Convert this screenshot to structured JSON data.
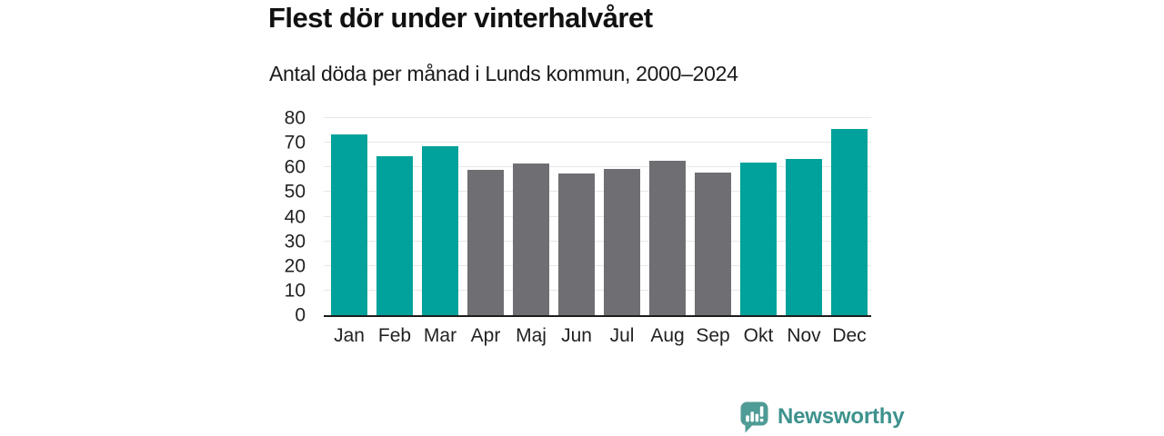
{
  "title": "Flest dör under vinterhalvåret",
  "subtitle": "Antal döda per månad i Lunds kommun, 2000–2024",
  "chart_data": {
    "type": "bar",
    "title": "Flest dör under vinterhalvåret",
    "subtitle": "Antal döda per månad i Lunds kommun, 2000–2024",
    "categories": [
      "Jan",
      "Feb",
      "Mar",
      "Apr",
      "Maj",
      "Jun",
      "Jul",
      "Aug",
      "Sep",
      "Okt",
      "Nov",
      "Dec"
    ],
    "values": [
      73.5,
      64.5,
      68.5,
      59,
      61.5,
      57.5,
      59.5,
      62.5,
      58,
      62,
      63.5,
      75.5
    ],
    "groups": [
      "winter",
      "winter",
      "winter",
      "summer",
      "summer",
      "summer",
      "summer",
      "summer",
      "summer",
      "winter",
      "winter",
      "winter"
    ],
    "colors": {
      "winter": "#00a29b",
      "summer": "#6e6e73"
    },
    "xlabel": "",
    "ylabel": "",
    "ylim": [
      0,
      80
    ],
    "yticks": [
      0,
      10,
      20,
      30,
      40,
      50,
      60,
      70,
      80
    ],
    "grid": true,
    "grid_color": "#e7e7e7",
    "axis_color": "#1d1d1b",
    "legend": false
  },
  "branding": {
    "logo_text": "Newsworthy",
    "logo_text_color": "#3d928d",
    "logo_icon": "speech-bubble-bar-chart-icon",
    "logo_icon_color": "#4f9b96"
  }
}
